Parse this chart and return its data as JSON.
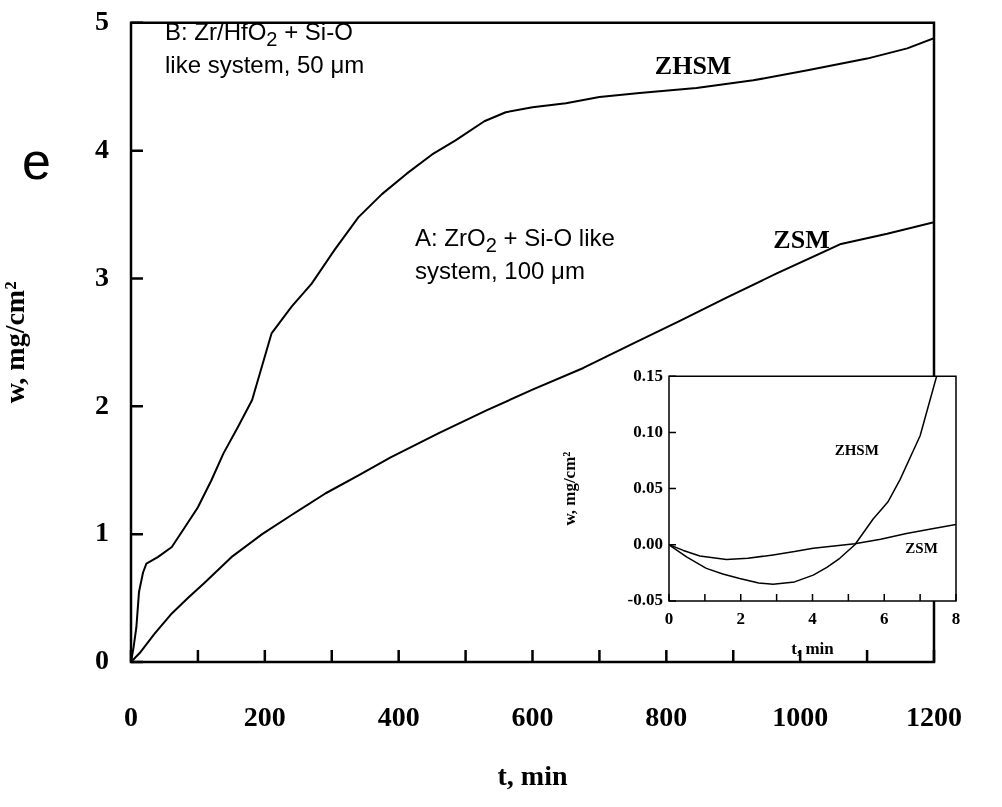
{
  "chart_data": [
    {
      "type": "line",
      "xlabel": "t, min",
      "ylabel": "w, mg/cm²",
      "annotations": [
        "B: Zr/HfO$_{2}$ + Si-O\nlike system, 50 μm",
        "A: ZrO$_{2}$ + Si-O like\nsystem, 100 μm",
        "e"
      ],
      "series": [
        {
          "name": "ZHSM",
          "color": "#000000",
          "x": [
            0,
            4,
            8,
            12,
            18,
            23,
            40,
            61,
            80,
            100,
            120,
            138,
            160,
            181,
            210,
            240,
            270,
            305,
            340,
            375,
            412,
            450,
            485,
            528,
            560,
            600,
            650,
            700,
            760,
            845,
            930,
            1013,
            1100,
            1160,
            1200
          ],
          "values": [
            0,
            0.12,
            0.27,
            0.55,
            0.7,
            0.77,
            0.82,
            0.9,
            1.05,
            1.21,
            1.42,
            1.63,
            1.84,
            2.05,
            2.57,
            2.78,
            2.96,
            3.23,
            3.48,
            3.66,
            3.82,
            3.97,
            4.08,
            4.23,
            4.3,
            4.34,
            4.37,
            4.42,
            4.45,
            4.49,
            4.55,
            4.63,
            4.72,
            4.8,
            4.88
          ]
        },
        {
          "name": "ZSM",
          "color": "#000000",
          "x": [
            0,
            13,
            35,
            61,
            85,
            110,
            150,
            196,
            240,
            291,
            340,
            388,
            460,
            532,
            600,
            676,
            750,
            821,
            890,
            965,
            1061,
            1130,
            1200
          ],
          "values": [
            0,
            0.07,
            0.22,
            0.38,
            0.5,
            0.62,
            0.82,
            1.0,
            1.15,
            1.32,
            1.46,
            1.6,
            1.79,
            1.97,
            2.13,
            2.3,
            2.49,
            2.67,
            2.85,
            3.04,
            3.27,
            3.35,
            3.44
          ]
        }
      ],
      "xlim": [
        0,
        1200
      ],
      "ylim": [
        0,
        5
      ],
      "xticks": [
        0,
        {
          "value": 100,
          "label": null
        },
        200,
        {
          "value": 300,
          "label": null
        },
        400,
        {
          "value": 500,
          "label": null
        },
        600,
        {
          "value": 700,
          "label": null
        },
        800,
        {
          "value": 900,
          "label": null
        },
        1000,
        {
          "value": 1100,
          "label": null
        },
        1200
      ],
      "yticks": [
        0,
        1,
        2,
        3,
        4,
        5
      ],
      "marker": "none",
      "line_style": "solid"
    },
    {
      "type": "line",
      "xlabel": "t, min",
      "ylabel": "w, mg/cm²",
      "series": [
        {
          "name": "ZHSM",
          "color": "#000000",
          "x": [
            0,
            0.5,
            1.04,
            1.5,
            1.97,
            2.5,
            2.9,
            3.5,
            4.02,
            4.4,
            4.76,
            5.18,
            5.69,
            6.1,
            6.44,
            7.0,
            7.46
          ],
          "values": [
            0,
            -0.011,
            -0.021,
            -0.026,
            -0.03,
            -0.034,
            -0.035,
            -0.033,
            -0.027,
            -0.02,
            -0.012,
            0,
            0.023,
            0.038,
            0.058,
            0.097,
            0.15
          ]
        },
        {
          "name": "ZSM",
          "color": "#000000",
          "x": [
            0,
            0.4,
            0.86,
            1.6,
            2.2,
            2.9,
            3.5,
            4.02,
            4.6,
            5.18,
            5.9,
            6.62,
            7.3,
            8
          ],
          "values": [
            0,
            -0.005,
            -0.01,
            -0.013,
            -0.012,
            -0.009,
            -0.006,
            -0.003,
            -0.001,
            0.001,
            0.005,
            0.01,
            0.014,
            0.018
          ]
        }
      ],
      "xlim": [
        0,
        8
      ],
      "ylim": [
        -0.05,
        0.15
      ],
      "xticks": [
        0,
        {
          "value": 1,
          "label": null
        },
        2,
        {
          "value": 3,
          "label": null
        },
        4,
        {
          "value": 5,
          "label": null
        },
        6,
        {
          "value": 7,
          "label": null
        },
        8
      ],
      "yticks": [
        -0.05,
        {
          "value": 0,
          "label": "0.00"
        },
        0.05,
        {
          "value": 0.1,
          "label": "0.10"
        },
        0.15
      ],
      "marker": "none",
      "line_style": "solid"
    }
  ]
}
